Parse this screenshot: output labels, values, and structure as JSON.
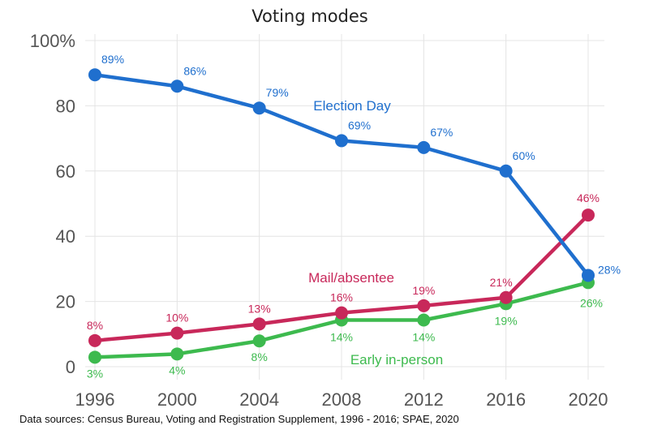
{
  "chart_data": {
    "type": "line",
    "title": "Voting modes",
    "x": [
      1996,
      2000,
      2004,
      2008,
      2012,
      2016,
      2020
    ],
    "x_tick_labels": [
      "1996",
      "2000",
      "2004",
      "2008",
      "2012",
      "2016",
      "2020"
    ],
    "y_tick_labels": [
      "0",
      "20",
      "40",
      "60",
      "80",
      "100%"
    ],
    "y_ticks": [
      0,
      20,
      40,
      60,
      80,
      100
    ],
    "ylim": [
      0,
      100
    ],
    "grid": true,
    "series": [
      {
        "name": "Election Day",
        "color": "#1f6fce",
        "values": [
          89.5,
          86,
          79.3,
          69.3,
          67.2,
          60,
          28
        ],
        "labels": [
          "89%",
          "86%",
          "79%",
          "69%",
          "67%",
          "60%",
          "28%"
        ]
      },
      {
        "name": "Mail/absentee",
        "color": "#c8285a",
        "values": [
          8,
          10.3,
          13.1,
          16.5,
          18.7,
          21.2,
          46.5
        ],
        "labels": [
          "8%",
          "10%",
          "13%",
          "16%",
          "19%",
          "21%",
          "46%"
        ]
      },
      {
        "name": "Early in-person",
        "color": "#3dba4e",
        "values": [
          2.9,
          3.9,
          7.9,
          14.3,
          14.3,
          19.3,
          25.8
        ],
        "labels": [
          "3%",
          "4%",
          "8%",
          "14%",
          "14%",
          "19%",
          "26%"
        ]
      }
    ],
    "source": "Data sources: Census Bureau, Voting and Registration Supplement, 1996 - 2016; SPAE, 2020"
  }
}
